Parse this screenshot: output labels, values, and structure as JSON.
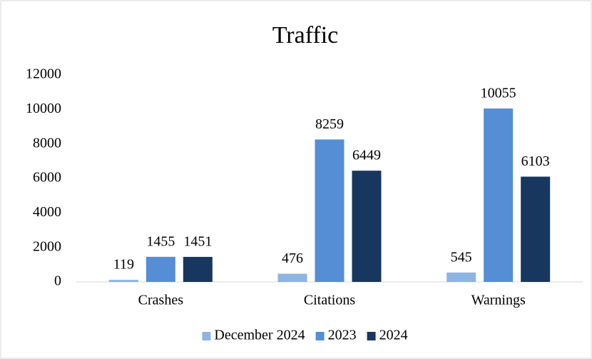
{
  "chart_data": {
    "type": "bar",
    "title": "Traffic",
    "categories": [
      "Crashes",
      "Citations",
      "Warnings"
    ],
    "series": [
      {
        "name": "December 2024",
        "color": "#8db4e2",
        "values": [
          119,
          476,
          545
        ]
      },
      {
        "name": "2023",
        "color": "#558ed5",
        "values": [
          1455,
          8259,
          10055
        ]
      },
      {
        "name": "2024",
        "color": "#17375e",
        "values": [
          1451,
          6449,
          6103
        ]
      }
    ],
    "ylim": [
      0,
      12000
    ],
    "yticks": [
      0,
      2000,
      4000,
      6000,
      8000,
      10000,
      12000
    ],
    "grid": false,
    "legend": "bottom"
  }
}
